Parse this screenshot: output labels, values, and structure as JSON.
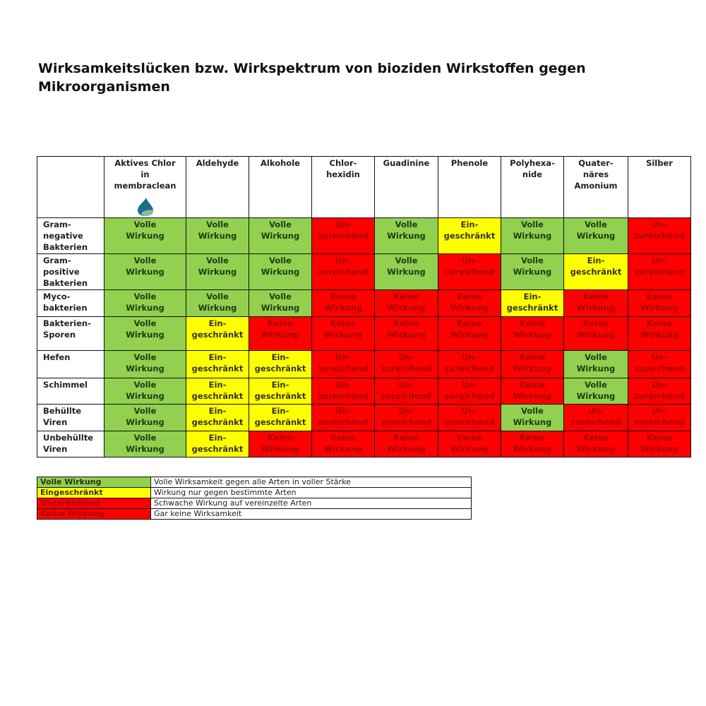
{
  "title": "Wirksamkeitslücken bzw. Wirkspektrum von bioziden Wirkstoffen gegen Mikroorganismen",
  "colors": {
    "V": "#92d050",
    "E": "#ffff00",
    "U": "#ff0000",
    "K": "#ff0000"
  },
  "columns": [
    "Aktives Chlor\nin\nmembraclean",
    "Aldehyde",
    "Alkohole",
    "Chlor-\nhexidin",
    "Guadinine",
    "Phenole",
    "Polyhexa-\nnide",
    "Quater-\nnäres\nAmonium",
    "Silber"
  ],
  "logo_icon": "membraclean-drop-icon",
  "statuses": {
    "V": "Volle\nWirkung",
    "E": "Ein-\ngeschränkt",
    "U": "Un-\nzureichend",
    "K": "Keine\nWirkung"
  },
  "rows": [
    {
      "label": "Gram-\nnegative\nBakterien",
      "cells": [
        "V",
        "V",
        "V",
        "U",
        "V",
        "E",
        "V",
        "V",
        "U"
      ]
    },
    {
      "label": "Gram-\npositive\nBakterien",
      "cells": [
        "V",
        "V",
        "V",
        "U",
        "V",
        "U",
        "V",
        "E",
        "U"
      ]
    },
    {
      "label": "Myco-\nbakterien",
      "cells": [
        "V",
        "V",
        "V",
        "K",
        "K",
        "K",
        "E",
        "K",
        "K"
      ]
    },
    {
      "label": "Bakterien-\nSporen",
      "cells": [
        "V",
        "E",
        "K",
        "K",
        "K",
        "K",
        "K",
        "K",
        "K"
      ]
    },
    {
      "label": "Hefen",
      "cells": [
        "V",
        "E",
        "E",
        "U",
        "U",
        "U",
        "K",
        "V",
        "U"
      ]
    },
    {
      "label": "Schimmel",
      "cells": [
        "V",
        "E",
        "E",
        "U",
        "U",
        "U",
        "K",
        "V",
        "U"
      ]
    },
    {
      "label": "Behüllte\nViren",
      "cells": [
        "V",
        "E",
        "E",
        "U",
        "U",
        "U",
        "V",
        "U",
        "U"
      ]
    },
    {
      "label": "Unbehüllte\nViren",
      "cells": [
        "V",
        "E",
        "K",
        "K",
        "K",
        "K",
        "K",
        "K",
        "K"
      ]
    }
  ],
  "legend": [
    {
      "code": "V",
      "key": "Volle Wirkung",
      "desc": "Volle Wirksamkeit gegen alle Arten in voller Stärke"
    },
    {
      "code": "E",
      "key": "Eingeschränkt",
      "desc": "Wirkung nur gegen bestimmte Arten"
    },
    {
      "code": "U",
      "key": "Unzureichend",
      "desc": "Schwache Wirkung auf vereinzelte Arten"
    },
    {
      "code": "K",
      "key": "Keine Wirkung",
      "desc": "Gar keine Wirksamkeit"
    }
  ]
}
